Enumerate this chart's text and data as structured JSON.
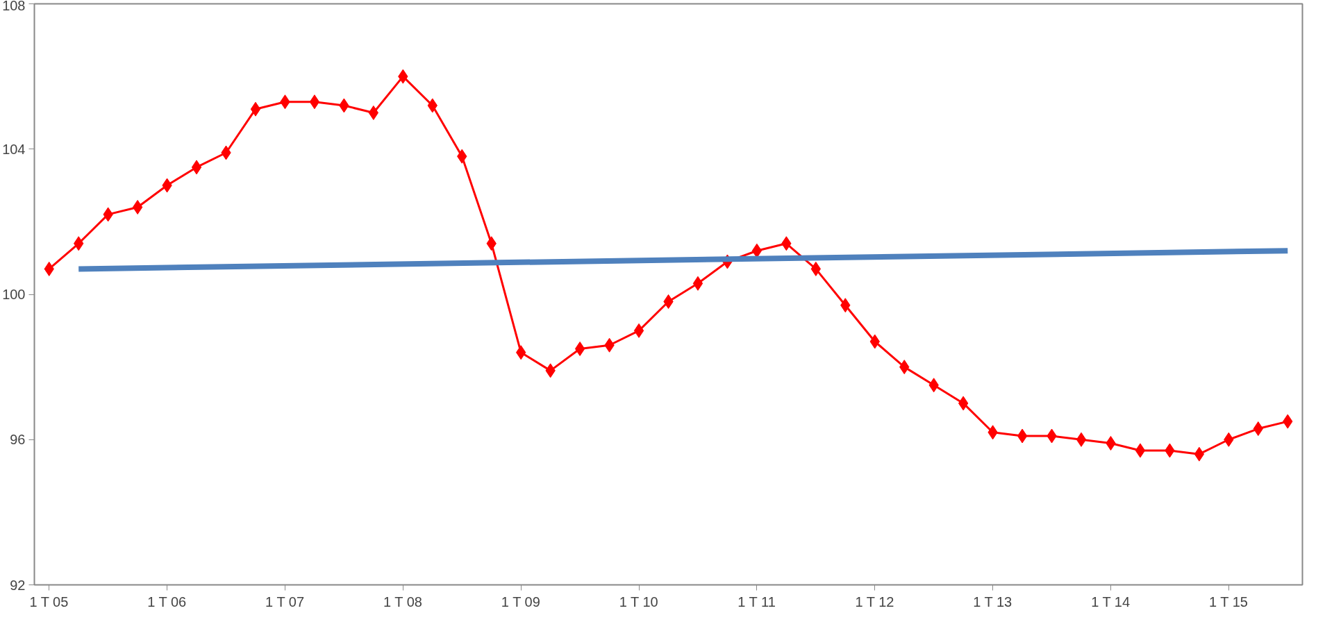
{
  "chart_data": {
    "type": "line",
    "categories": [
      "1 T 05",
      null,
      null,
      null,
      "1 T 06",
      null,
      null,
      null,
      "1 T 07",
      null,
      null,
      null,
      "1 T 08",
      null,
      null,
      null,
      "1 T 09",
      null,
      null,
      null,
      "1 T 10",
      null,
      null,
      null,
      "1 T 11",
      null,
      null,
      null,
      "1 T 12",
      null,
      null,
      null,
      "1 T 13",
      null,
      null,
      null,
      "1 T 14",
      null,
      null,
      null,
      "1 T 15",
      null,
      null
    ],
    "series": [
      {
        "color": "#ff0000",
        "marker": "diamond",
        "values": [
          100.7,
          101.4,
          102.2,
          102.4,
          103.0,
          103.5,
          103.9,
          105.1,
          105.3,
          105.3,
          105.2,
          105.0,
          106.0,
          105.2,
          103.8,
          101.4,
          98.4,
          97.9,
          98.5,
          98.6,
          99.0,
          99.8,
          100.3,
          100.9,
          101.2,
          101.4,
          100.7,
          99.7,
          98.7,
          98.0,
          97.5,
          97.0,
          96.2,
          96.1,
          96.1,
          96.0,
          95.9,
          95.7,
          95.7,
          95.6,
          96.0,
          96.3,
          96.5
        ]
      },
      {
        "type": "line",
        "color": "#4f81bd",
        "marker": "none",
        "values": [
          null,
          100.7,
          null,
          null,
          null,
          null,
          null,
          null,
          null,
          null,
          null,
          null,
          null,
          null,
          null,
          null,
          null,
          null,
          null,
          null,
          null,
          null,
          null,
          null,
          null,
          null,
          null,
          null,
          null,
          null,
          null,
          null,
          null,
          null,
          null,
          null,
          null,
          null,
          null,
          null,
          null,
          null,
          101.2
        ]
      }
    ],
    "ylim": [
      92,
      108
    ],
    "yticks": [
      92,
      96,
      100,
      104,
      108
    ],
    "grid": false,
    "line_style": "solid"
  }
}
